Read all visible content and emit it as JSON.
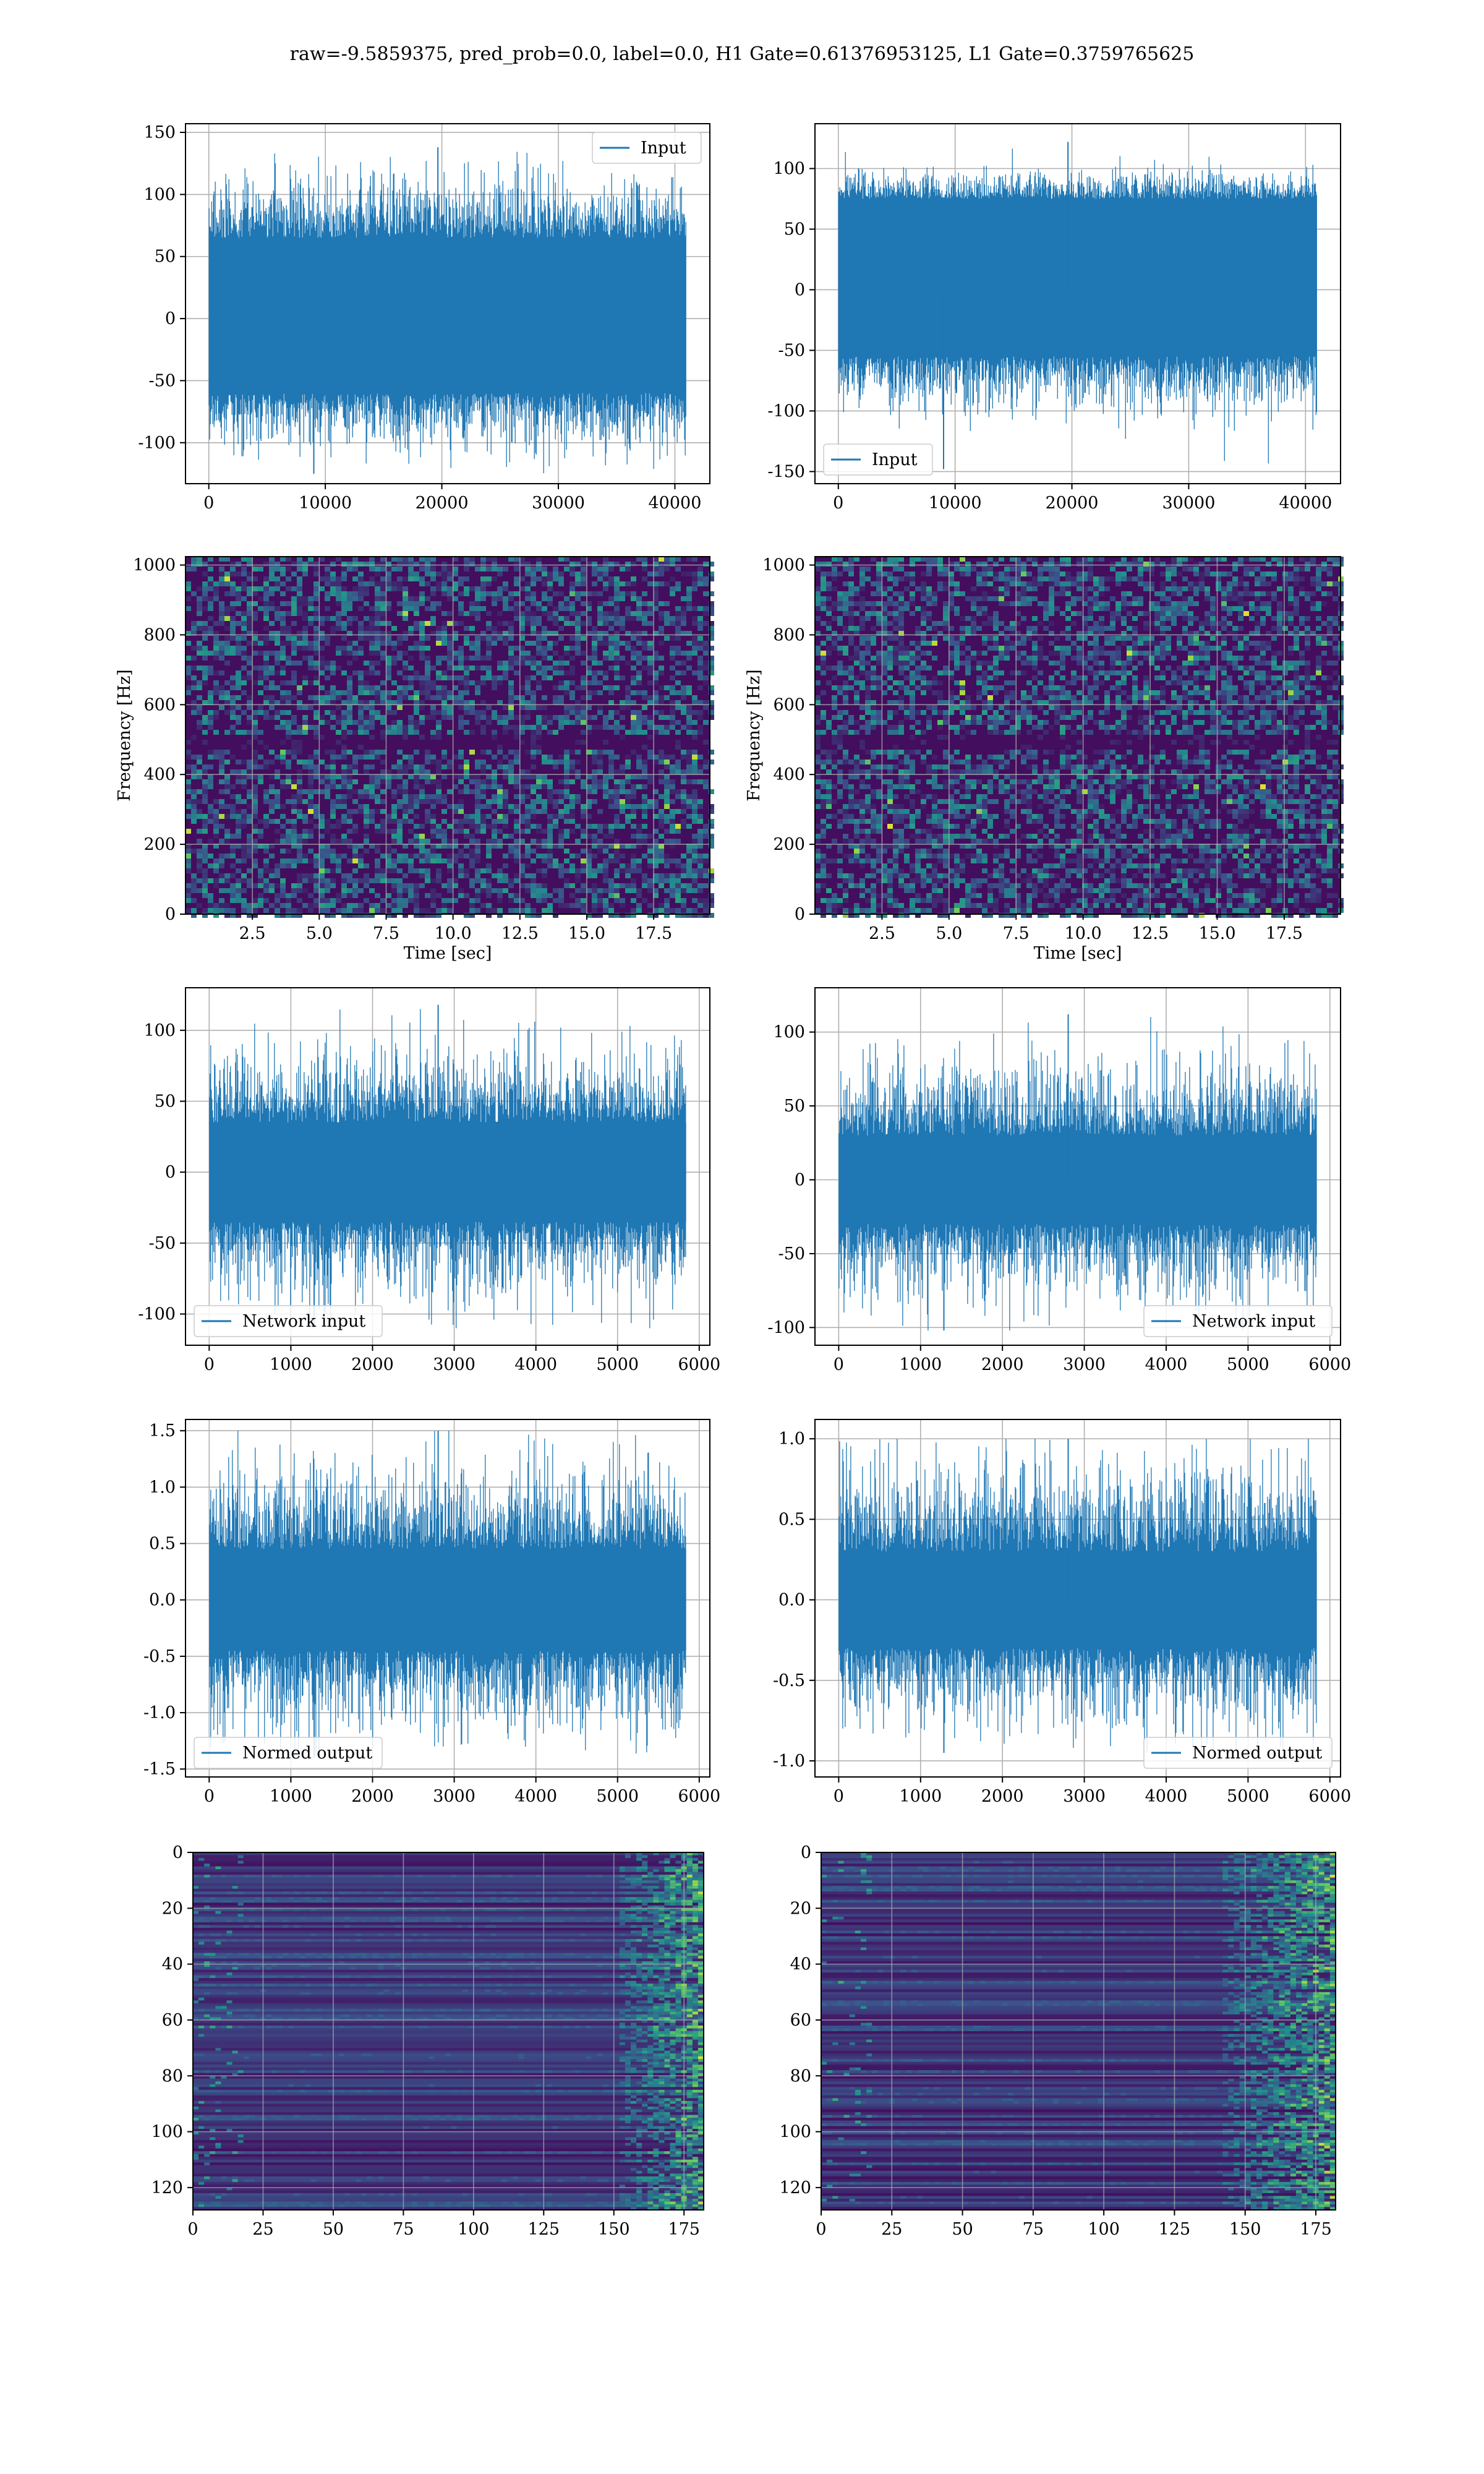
{
  "figure": {
    "title": "raw=-9.5859375, pred_prob=0.0, label=0.0, H1 Gate=0.61376953125, L1 Gate=0.3759765625"
  },
  "colors": {
    "line": "#1f77b4",
    "grid": "#b0b0b0",
    "viridis_low": "#440154",
    "viridis_mid": "#21918c",
    "viridis_high": "#fde725"
  },
  "chart_data": [
    {
      "id": "r0c0",
      "type": "line",
      "title": "",
      "xlabel": "",
      "ylabel": "",
      "legend": "top-right",
      "series": [
        {
          "name": "Input",
          "x_range": [
            0,
            40960
          ],
          "envelope": [
            -100,
            110
          ],
          "extremes": [
            -125,
            138
          ],
          "core": [
            -60,
            65
          ]
        }
      ],
      "xlim": [
        -2000,
        43000
      ],
      "ylim": [
        -133,
        157
      ],
      "xticks": [
        0,
        10000,
        20000,
        30000,
        40000
      ],
      "yticks": [
        -100,
        -50,
        0,
        50,
        100,
        150
      ],
      "grid": true
    },
    {
      "id": "r0c1",
      "type": "line",
      "title": "",
      "xlabel": "",
      "ylabel": "",
      "legend": "bottom-left",
      "series": [
        {
          "name": "Input",
          "x_range": [
            0,
            40960
          ],
          "envelope": [
            -95,
            95
          ],
          "extremes": [
            -148,
            122
          ],
          "core": [
            -55,
            75
          ]
        }
      ],
      "xlim": [
        -2000,
        43000
      ],
      "ylim": [
        -160,
        137
      ],
      "xticks": [
        0,
        10000,
        20000,
        30000,
        40000
      ],
      "yticks": [
        -150,
        -100,
        -50,
        0,
        50,
        100
      ],
      "grid": true
    },
    {
      "id": "r1c0",
      "type": "heatmap",
      "title": "",
      "xlabel": "Time [sec]",
      "ylabel": "Frequency [Hz]",
      "xlim": [
        0,
        19.6
      ],
      "ylim": [
        0,
        1024
      ],
      "xticks": [
        2.5,
        5.0,
        7.5,
        10.0,
        12.5,
        15.0,
        17.5
      ],
      "yticks": [
        0,
        200,
        400,
        600,
        800,
        1000
      ],
      "xtick_labels": [
        "2.5",
        "5.0",
        "7.5",
        "10.0",
        "12.5",
        "15.0",
        "17.5"
      ],
      "dark_band_y": 500,
      "grid": true
    },
    {
      "id": "r1c1",
      "type": "heatmap",
      "title": "",
      "xlabel": "Time [sec]",
      "ylabel": "Frequency [Hz]",
      "xlim": [
        0,
        19.6
      ],
      "ylim": [
        0,
        1024
      ],
      "xticks": [
        2.5,
        5.0,
        7.5,
        10.0,
        12.5,
        15.0,
        17.5
      ],
      "yticks": [
        0,
        200,
        400,
        600,
        800,
        1000
      ],
      "xtick_labels": [
        "2.5",
        "5.0",
        "7.5",
        "10.0",
        "12.5",
        "15.0",
        "17.5"
      ],
      "dark_band_y": 500,
      "grid": true
    },
    {
      "id": "r2c0",
      "type": "line",
      "title": "",
      "xlabel": "",
      "ylabel": "",
      "legend": "bottom-left",
      "series": [
        {
          "name": "Network input",
          "x_range": [
            0,
            5840
          ],
          "envelope": [
            -80,
            80
          ],
          "extremes": [
            -110,
            118
          ],
          "core": [
            -35,
            35
          ]
        }
      ],
      "xlim": [
        -290,
        6130
      ],
      "ylim": [
        -122,
        130
      ],
      "xticks": [
        0,
        1000,
        2000,
        3000,
        4000,
        5000,
        6000
      ],
      "yticks": [
        -100,
        -50,
        0,
        50,
        100
      ],
      "grid": true
    },
    {
      "id": "r2c1",
      "type": "line",
      "title": "",
      "xlabel": "",
      "ylabel": "",
      "legend": "bottom-right",
      "series": [
        {
          "name": "Network input",
          "x_range": [
            0,
            5840
          ],
          "envelope": [
            -75,
            75
          ],
          "extremes": [
            -102,
            112
          ],
          "core": [
            -30,
            30
          ]
        }
      ],
      "xlim": [
        -290,
        6130
      ],
      "ylim": [
        -112,
        130
      ],
      "xticks": [
        0,
        1000,
        2000,
        3000,
        4000,
        5000,
        6000
      ],
      "yticks": [
        -100,
        -50,
        0,
        50,
        100
      ],
      "grid": true
    },
    {
      "id": "r3c0",
      "type": "line",
      "title": "",
      "xlabel": "",
      "ylabel": "",
      "legend": "bottom-left",
      "series": [
        {
          "name": "Normed output",
          "x_range": [
            0,
            5840
          ],
          "envelope": [
            -1.1,
            1.1
          ],
          "extremes": [
            -1.4,
            1.5
          ],
          "core": [
            -0.45,
            0.45
          ]
        }
      ],
      "xlim": [
        -290,
        6130
      ],
      "ylim": [
        -1.57,
        1.6
      ],
      "xticks": [
        0,
        1000,
        2000,
        3000,
        4000,
        5000,
        6000
      ],
      "yticks": [
        -1.5,
        -1.0,
        -0.5,
        0.0,
        0.5,
        1.0,
        1.5
      ],
      "grid": true
    },
    {
      "id": "r3c1",
      "type": "line",
      "title": "",
      "xlabel": "",
      "ylabel": "",
      "legend": "bottom-right",
      "series": [
        {
          "name": "Normed output",
          "x_range": [
            0,
            5840
          ],
          "envelope": [
            -0.75,
            0.8
          ],
          "extremes": [
            -0.95,
            1.0
          ],
          "core": [
            -0.3,
            0.3
          ]
        }
      ],
      "xlim": [
        -290,
        6130
      ],
      "ylim": [
        -1.1,
        1.12
      ],
      "xticks": [
        0,
        1000,
        2000,
        3000,
        4000,
        5000,
        6000
      ],
      "yticks": [
        -1.0,
        -0.5,
        0.0,
        0.5,
        1.0
      ],
      "grid": true
    },
    {
      "id": "r4c0",
      "type": "heatmap",
      "title": "",
      "xlabel": "",
      "ylabel": "",
      "xlim": [
        0,
        182
      ],
      "ylim": [
        128,
        0
      ],
      "xticks": [
        0,
        25,
        50,
        75,
        100,
        125,
        150,
        175
      ],
      "yticks": [
        0,
        20,
        40,
        60,
        80,
        100,
        120
      ],
      "hot_columns_from": 150,
      "grid": true
    },
    {
      "id": "r4c1",
      "type": "heatmap",
      "title": "",
      "xlabel": "",
      "ylabel": "",
      "xlim": [
        0,
        182
      ],
      "ylim": [
        128,
        0
      ],
      "xticks": [
        0,
        25,
        50,
        75,
        100,
        125,
        150,
        175
      ],
      "yticks": [
        0,
        20,
        40,
        60,
        80,
        100,
        120
      ],
      "hot_columns_from": 140,
      "grid": true
    }
  ]
}
